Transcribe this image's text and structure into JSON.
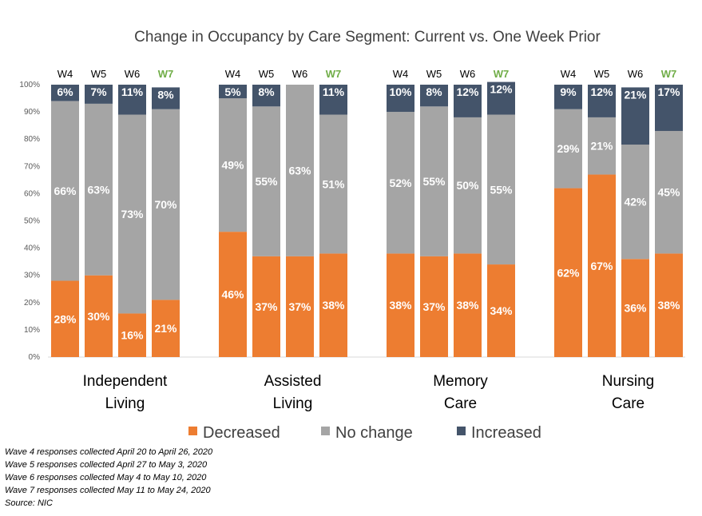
{
  "chart_data": {
    "type": "bar",
    "stacked": true,
    "title": "Change in Occupancy by Care Segment: Current vs. One Week Prior",
    "ylim": [
      0,
      100
    ],
    "yticks": [
      0,
      10,
      20,
      30,
      40,
      50,
      60,
      70,
      80,
      90,
      100
    ],
    "ytick_labels": [
      "0%",
      "10%",
      "20%",
      "30%",
      "40%",
      "50%",
      "60%",
      "70%",
      "80%",
      "90%",
      "100%"
    ],
    "series_names": [
      "Decreased",
      "No change",
      "Increased"
    ],
    "colors": {
      "decreased": "#ED7D31",
      "no_change": "#A5A5A5",
      "increased": "#44546A",
      "latest_wave": "#70AD47"
    },
    "groups": [
      {
        "label_lines": [
          "Independent",
          "Living"
        ],
        "bars": [
          {
            "wave": "W4",
            "decreased": 28,
            "no_change": 66,
            "increased": 6
          },
          {
            "wave": "W5",
            "decreased": 30,
            "no_change": 63,
            "increased": 7
          },
          {
            "wave": "W6",
            "decreased": 16,
            "no_change": 73,
            "increased": 11
          },
          {
            "wave": "W7",
            "decreased": 21,
            "no_change": 70,
            "increased": 8
          }
        ]
      },
      {
        "label_lines": [
          "Assisted",
          "Living"
        ],
        "bars": [
          {
            "wave": "W4",
            "decreased": 46,
            "no_change": 49,
            "increased": 5
          },
          {
            "wave": "W5",
            "decreased": 37,
            "no_change": 55,
            "increased": 8
          },
          {
            "wave": "W6",
            "decreased": 37,
            "no_change": 63,
            "increased": 0
          },
          {
            "wave": "W7",
            "decreased": 38,
            "no_change": 51,
            "increased": 11
          }
        ]
      },
      {
        "label_lines": [
          "Memory",
          "Care"
        ],
        "bars": [
          {
            "wave": "W4",
            "decreased": 38,
            "no_change": 52,
            "increased": 10
          },
          {
            "wave": "W5",
            "decreased": 37,
            "no_change": 55,
            "increased": 8
          },
          {
            "wave": "W6",
            "decreased": 38,
            "no_change": 50,
            "increased": 12
          },
          {
            "wave": "W7",
            "decreased": 34,
            "no_change": 55,
            "increased": 12
          }
        ]
      },
      {
        "label_lines": [
          "Nursing",
          "Care"
        ],
        "bars": [
          {
            "wave": "W4",
            "decreased": 62,
            "no_change": 29,
            "increased": 9
          },
          {
            "wave": "W5",
            "decreased": 67,
            "no_change": 21,
            "increased": 12
          },
          {
            "wave": "W6",
            "decreased": 36,
            "no_change": 42,
            "increased": 21
          },
          {
            "wave": "W7",
            "decreased": 38,
            "no_change": 45,
            "increased": 17
          }
        ]
      }
    ],
    "legend": [
      "Decreased",
      "No change",
      "Increased"
    ]
  },
  "footnotes": [
    "Wave 4 responses collected April 20 to April 26, 2020",
    "Wave 5 responses collected April 27 to May 3, 2020",
    "Wave 6 responses collected May 4 to May 10, 2020",
    "Wave 7 responses collected May 11 to May 24, 2020",
    "Source: NIC"
  ]
}
